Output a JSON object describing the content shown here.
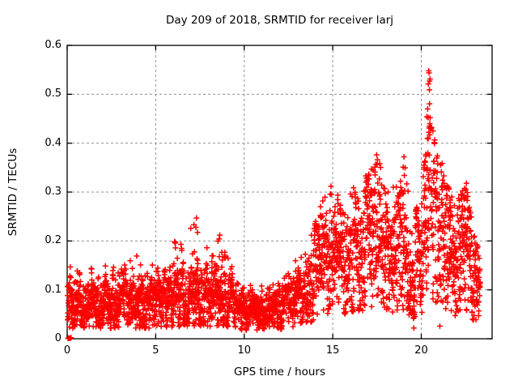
{
  "page": {
    "background": "#ffffff",
    "text_color": "#000000"
  },
  "chart_data": {
    "type": "scatter",
    "title": "Day 209 of 2018, SRMTID for receiver larj",
    "xlabel": "GPS time / hours",
    "ylabel": "SRMTID / TECUs",
    "xlim": [
      0,
      24
    ],
    "ylim": [
      0,
      0.6
    ],
    "xticks": [
      0,
      5,
      10,
      15,
      20
    ],
    "xtick_labels": [
      "0",
      "5",
      "10",
      "15",
      "20"
    ],
    "yticks": [
      0,
      0.1,
      0.2,
      0.3,
      0.4,
      0.5,
      0.6
    ],
    "ytick_labels": [
      "0",
      "0.1",
      "0.2",
      "0.3",
      "0.4",
      "0.5",
      "0.6"
    ],
    "grid": true,
    "grid_style": "dashed",
    "grid_color": "#909090",
    "axis_color": "#000000",
    "legend": "none",
    "marker": {
      "shape": "plus",
      "color": "#ff0000",
      "size": 7
    },
    "t_start": 0.02,
    "t_end": 23.32,
    "dt": 0.0083333,
    "extra_point_prob": 0.22,
    "seed": 2018209,
    "envelope": [
      {
        "t": 0.0,
        "med": 0.072,
        "sig": 0.026,
        "amp": 0.05,
        "sp": 0.1,
        "cap": 0.15
      },
      {
        "t": 1.0,
        "med": 0.068,
        "sig": 0.022,
        "amp": 0.04,
        "sp": 0.08,
        "cap": 0.14
      },
      {
        "t": 2.0,
        "med": 0.068,
        "sig": 0.024,
        "amp": 0.06,
        "sp": 0.1,
        "cap": 0.16
      },
      {
        "t": 3.0,
        "med": 0.07,
        "sig": 0.024,
        "amp": 0.05,
        "sp": 0.08,
        "cap": 0.15
      },
      {
        "t": 4.0,
        "med": 0.072,
        "sig": 0.026,
        "amp": 0.08,
        "sp": 0.1,
        "cap": 0.175
      },
      {
        "t": 5.0,
        "med": 0.072,
        "sig": 0.024,
        "amp": 0.05,
        "sp": 0.08,
        "cap": 0.15
      },
      {
        "t": 6.0,
        "med": 0.08,
        "sig": 0.028,
        "amp": 0.09,
        "sp": 0.12,
        "cap": 0.2
      },
      {
        "t": 6.8,
        "med": 0.085,
        "sig": 0.03,
        "amp": 0.11,
        "sp": 0.13,
        "cap": 0.22
      },
      {
        "t": 7.3,
        "med": 0.088,
        "sig": 0.032,
        "amp": 0.14,
        "sp": 0.15,
        "cap": 0.25
      },
      {
        "t": 8.0,
        "med": 0.082,
        "sig": 0.028,
        "amp": 0.09,
        "sp": 0.1,
        "cap": 0.19
      },
      {
        "t": 8.6,
        "med": 0.09,
        "sig": 0.03,
        "amp": 0.11,
        "sp": 0.12,
        "cap": 0.215
      },
      {
        "t": 9.2,
        "med": 0.075,
        "sig": 0.024,
        "amp": 0.06,
        "sp": 0.08,
        "cap": 0.16
      },
      {
        "t": 9.8,
        "med": 0.06,
        "sig": 0.018,
        "amp": 0.03,
        "sp": 0.05,
        "cap": 0.12
      },
      {
        "t": 10.5,
        "med": 0.058,
        "sig": 0.017,
        "amp": 0.03,
        "sp": 0.05,
        "cap": 0.11
      },
      {
        "t": 11.5,
        "med": 0.06,
        "sig": 0.018,
        "amp": 0.03,
        "sp": 0.05,
        "cap": 0.11
      },
      {
        "t": 12.3,
        "med": 0.065,
        "sig": 0.02,
        "amp": 0.04,
        "sp": 0.06,
        "cap": 0.13
      },
      {
        "t": 13.0,
        "med": 0.085,
        "sig": 0.028,
        "amp": 0.06,
        "sp": 0.1,
        "cap": 0.17
      },
      {
        "t": 13.8,
        "med": 0.115,
        "sig": 0.04,
        "amp": 0.08,
        "sp": 0.12,
        "cap": 0.22
      },
      {
        "t": 14.6,
        "med": 0.155,
        "sig": 0.052,
        "amp": 0.11,
        "sp": 0.14,
        "cap": 0.3
      },
      {
        "t": 15.0,
        "med": 0.175,
        "sig": 0.058,
        "amp": 0.12,
        "sp": 0.15,
        "cap": 0.315
      },
      {
        "t": 15.6,
        "med": 0.165,
        "sig": 0.052,
        "amp": 0.1,
        "sp": 0.12,
        "cap": 0.29
      },
      {
        "t": 16.2,
        "med": 0.18,
        "sig": 0.058,
        "amp": 0.11,
        "sp": 0.12,
        "cap": 0.31
      },
      {
        "t": 17.0,
        "med": 0.2,
        "sig": 0.062,
        "amp": 0.13,
        "sp": 0.14,
        "cap": 0.345
      },
      {
        "t": 17.5,
        "med": 0.215,
        "sig": 0.068,
        "amp": 0.15,
        "sp": 0.17,
        "cap": 0.38
      },
      {
        "t": 18.1,
        "med": 0.185,
        "sig": 0.06,
        "amp": 0.12,
        "sp": 0.12,
        "cap": 0.32
      },
      {
        "t": 18.7,
        "med": 0.17,
        "sig": 0.06,
        "amp": 0.12,
        "sp": 0.12,
        "cap": 0.31
      },
      {
        "t": 19.1,
        "med": 0.18,
        "sig": 0.068,
        "amp": 0.16,
        "sp": 0.15,
        "cap": 0.37
      },
      {
        "t": 19.6,
        "med": 0.135,
        "sig": 0.058,
        "amp": 0.1,
        "sp": 0.1,
        "cap": 0.26
      },
      {
        "t": 20.1,
        "med": 0.165,
        "sig": 0.07,
        "amp": 0.14,
        "sp": 0.15,
        "cap": 0.33
      },
      {
        "t": 20.45,
        "med": 0.285,
        "sig": 0.1,
        "amp": 0.24,
        "sp": 0.25,
        "cap": 0.553
      },
      {
        "t": 20.8,
        "med": 0.235,
        "sig": 0.085,
        "amp": 0.15,
        "sp": 0.18,
        "cap": 0.42
      },
      {
        "t": 21.3,
        "med": 0.195,
        "sig": 0.072,
        "amp": 0.11,
        "sp": 0.14,
        "cap": 0.34
      },
      {
        "t": 21.9,
        "med": 0.15,
        "sig": 0.06,
        "amp": 0.1,
        "sp": 0.12,
        "cap": 0.27
      },
      {
        "t": 22.5,
        "med": 0.165,
        "sig": 0.068,
        "amp": 0.12,
        "sp": 0.14,
        "cap": 0.32
      },
      {
        "t": 23.0,
        "med": 0.115,
        "sig": 0.048,
        "amp": 0.07,
        "sp": 0.1,
        "cap": 0.21
      },
      {
        "t": 23.32,
        "med": 0.095,
        "sig": 0.04,
        "amp": 0.05,
        "sp": 0.08,
        "cap": 0.18
      }
    ],
    "feature_points": [
      [
        0.05,
        0.001
      ],
      [
        0.1,
        0.001
      ],
      [
        0.16,
        0.001
      ],
      [
        0.22,
        0.002
      ],
      [
        7.3,
        0.247
      ],
      [
        7.27,
        0.228
      ],
      [
        8.62,
        0.212
      ],
      [
        8.58,
        0.204
      ],
      [
        14.9,
        0.312
      ],
      [
        14.86,
        0.296
      ],
      [
        17.48,
        0.376
      ],
      [
        17.53,
        0.366
      ],
      [
        17.43,
        0.357
      ],
      [
        19.02,
        0.372
      ],
      [
        18.98,
        0.351
      ],
      [
        19.58,
        0.022
      ],
      [
        21.05,
        0.026
      ],
      [
        20.42,
        0.548
      ],
      [
        20.4,
        0.521
      ],
      [
        20.46,
        0.509
      ],
      [
        20.36,
        0.47
      ],
      [
        20.5,
        0.452
      ],
      [
        20.44,
        0.431
      ],
      [
        20.39,
        0.409
      ],
      [
        22.55,
        0.318
      ],
      [
        22.6,
        0.299
      ]
    ]
  }
}
